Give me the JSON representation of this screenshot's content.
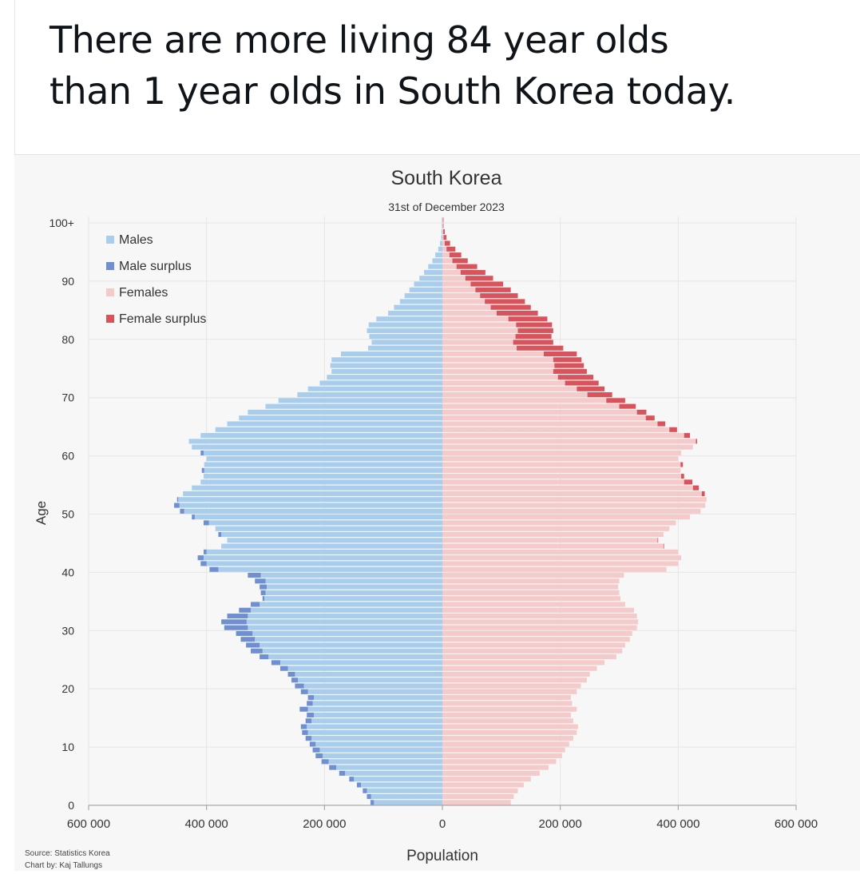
{
  "post": {
    "headline_line1": "There are more living 84 year olds",
    "headline_line2": "than 1 year olds in South Korea today."
  },
  "colors": {
    "males": "#a9cdec",
    "male_surplus": "#6f8fd0",
    "females": "#f4caca",
    "female_surplus": "#d9535c",
    "gridline": "#ffffff"
  },
  "chart_data": {
    "type": "bar",
    "title": "South Korea",
    "subtitle": "31st of December 2023",
    "xlabel": "Population",
    "ylabel": "Age",
    "xlim": [
      -600000,
      600000
    ],
    "x_ticks": [
      {
        "value": -600000,
        "label": "600 000"
      },
      {
        "value": -400000,
        "label": "400 000"
      },
      {
        "value": -200000,
        "label": "200 000"
      },
      {
        "value": 0,
        "label": "0"
      },
      {
        "value": 200000,
        "label": "200 000"
      },
      {
        "value": 400000,
        "label": "400 000"
      },
      {
        "value": 600000,
        "label": "600 000"
      }
    ],
    "y_ticks": [
      {
        "value": 0,
        "label": "0"
      },
      {
        "value": 10,
        "label": "10"
      },
      {
        "value": 20,
        "label": "20"
      },
      {
        "value": 30,
        "label": "30"
      },
      {
        "value": 40,
        "label": "40"
      },
      {
        "value": 50,
        "label": "50"
      },
      {
        "value": 60,
        "label": "60"
      },
      {
        "value": 70,
        "label": "70"
      },
      {
        "value": 80,
        "label": "80"
      },
      {
        "value": 90,
        "label": "90"
      },
      {
        "value": 100,
        "label": "100+"
      }
    ],
    "legend": {
      "position": "top-left",
      "entries": [
        "Males",
        "Male surplus",
        "Females",
        "Female surplus"
      ]
    },
    "source": "Source: Statistics Korea",
    "credit": "Chart by: Kaj Tallungs",
    "ages": [
      0,
      1,
      2,
      3,
      4,
      5,
      6,
      7,
      8,
      9,
      10,
      11,
      12,
      13,
      14,
      15,
      16,
      17,
      18,
      19,
      20,
      21,
      22,
      23,
      24,
      25,
      26,
      27,
      28,
      29,
      30,
      31,
      32,
      33,
      34,
      35,
      36,
      37,
      38,
      39,
      40,
      41,
      42,
      43,
      44,
      45,
      46,
      47,
      48,
      49,
      50,
      51,
      52,
      53,
      54,
      55,
      56,
      57,
      58,
      59,
      60,
      61,
      62,
      63,
      64,
      65,
      66,
      67,
      68,
      69,
      70,
      71,
      72,
      73,
      74,
      75,
      76,
      77,
      78,
      79,
      80,
      81,
      82,
      83,
      84,
      85,
      86,
      87,
      88,
      89,
      90,
      91,
      92,
      93,
      94,
      95,
      96,
      97,
      98,
      99,
      100
    ],
    "series": [
      {
        "name": "Males",
        "values": [
          122000,
          128000,
          135000,
          145000,
          158000,
          175000,
          192000,
          205000,
          215000,
          220000,
          225000,
          232000,
          238000,
          240000,
          232000,
          230000,
          242000,
          230000,
          228000,
          240000,
          250000,
          256000,
          262000,
          275000,
          290000,
          310000,
          325000,
          333000,
          342000,
          350000,
          370000,
          375000,
          365000,
          345000,
          325000,
          305000,
          308000,
          310000,
          318000,
          330000,
          395000,
          410000,
          415000,
          405000,
          375000,
          365000,
          380000,
          385000,
          405000,
          425000,
          445000,
          455000,
          450000,
          440000,
          425000,
          410000,
          405000,
          408000,
          404000,
          400000,
          410000,
          425000,
          430000,
          410000,
          385000,
          365000,
          345000,
          330000,
          300000,
          278000,
          246000,
          228000,
          208000,
          196000,
          188000,
          190000,
          188000,
          172000,
          126000,
          120000,
          124000,
          128000,
          125000,
          112000,
          92000,
          82000,
          72000,
          64000,
          56000,
          48000,
          39000,
          31000,
          24000,
          17000,
          12000,
          7000,
          4000,
          2000,
          1500,
          1000,
          1000
        ]
      },
      {
        "name": "Females",
        "values": [
          116000,
          121000,
          128000,
          138000,
          150000,
          165000,
          180000,
          193000,
          203000,
          208000,
          215000,
          222000,
          228000,
          230000,
          222000,
          218000,
          228000,
          220000,
          218000,
          228000,
          235000,
          245000,
          250000,
          262000,
          275000,
          295000,
          305000,
          310000,
          318000,
          322000,
          330000,
          332000,
          330000,
          325000,
          310000,
          302000,
          300000,
          298000,
          300000,
          308000,
          380000,
          400000,
          405000,
          400000,
          376000,
          366000,
          375000,
          385000,
          396000,
          420000,
          438000,
          446000,
          448000,
          445000,
          435000,
          424000,
          410000,
          404000,
          408000,
          400000,
          405000,
          425000,
          432000,
          420000,
          398000,
          378000,
          360000,
          346000,
          328000,
          310000,
          288000,
          275000,
          265000,
          256000,
          245000,
          240000,
          236000,
          228000,
          205000,
          188000,
          185000,
          188000,
          186000,
          178000,
          162000,
          150000,
          140000,
          128000,
          116000,
          103000,
          86000,
          73000,
          59000,
          43000,
          32000,
          22000,
          13000,
          7000,
          4000,
          2000,
          2000
        ]
      }
    ]
  }
}
